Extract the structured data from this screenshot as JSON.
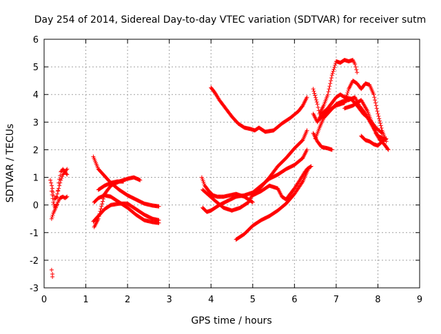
{
  "chart_data": {
    "type": "scatter",
    "title": "Day 254 of 2014, Sidereal Day-to-day VTEC variation (SDTVAR) for receiver sutm",
    "xlabel": "GPS time / hours",
    "ylabel": "SDTVAR / TECUs",
    "xlim": [
      0,
      9
    ],
    "ylim": [
      -3,
      6
    ],
    "x_ticks": [
      "0",
      "1",
      "2",
      "3",
      "4",
      "5",
      "6",
      "7",
      "8",
      "9"
    ],
    "y_ticks": [
      "-3",
      "-2",
      "-1",
      "0",
      "1",
      "2",
      "3",
      "4",
      "5",
      "6"
    ],
    "grid": true,
    "marker": "+",
    "colors": {
      "series": "#ff0000",
      "grid": "#a0a0a0",
      "axis": "#000000"
    },
    "tracks": [
      [
        [
          0.15,
          0.9
        ],
        [
          0.2,
          0.6
        ],
        [
          0.25,
          0.2
        ],
        [
          0.3,
          0.3
        ],
        [
          0.35,
          0.6
        ],
        [
          0.4,
          0.9
        ],
        [
          0.45,
          1.1
        ],
        [
          0.5,
          1.2
        ],
        [
          0.55,
          1.3
        ]
      ],
      [
        [
          0.18,
          -0.5
        ],
        [
          0.22,
          -0.3
        ],
        [
          0.28,
          -0.1
        ],
        [
          0.33,
          0.1
        ],
        [
          0.38,
          0.25
        ],
        [
          0.45,
          0.3
        ],
        [
          0.5,
          0.25
        ],
        [
          0.55,
          0.3
        ]
      ],
      [
        [
          0.18,
          0.5
        ],
        [
          0.22,
          0.1
        ],
        [
          0.26,
          -0.1
        ],
        [
          0.3,
          0.0
        ],
        [
          0.35,
          0.8
        ],
        [
          0.4,
          1.2
        ],
        [
          0.45,
          1.3
        ],
        [
          0.5,
          1.2
        ],
        [
          0.55,
          1.1
        ]
      ],
      [
        [
          0.18,
          -2.35
        ],
        [
          0.2,
          -2.5
        ],
        [
          0.2,
          -2.6
        ]
      ],
      [
        [
          1.18,
          1.75
        ],
        [
          1.3,
          1.3
        ],
        [
          1.45,
          1.05
        ],
        [
          1.6,
          0.8
        ],
        [
          1.8,
          0.55
        ],
        [
          2.0,
          0.35
        ],
        [
          2.2,
          0.2
        ],
        [
          2.4,
          0.05
        ],
        [
          2.6,
          -0.02
        ],
        [
          2.75,
          -0.05
        ]
      ],
      [
        [
          1.18,
          -0.6
        ],
        [
          1.3,
          -0.4
        ],
        [
          1.45,
          -0.15
        ],
        [
          1.6,
          0.0
        ],
        [
          1.8,
          0.05
        ],
        [
          2.0,
          0.05
        ],
        [
          2.2,
          -0.15
        ],
        [
          2.4,
          -0.35
        ],
        [
          2.6,
          -0.5
        ],
        [
          2.75,
          -0.55
        ]
      ],
      [
        [
          1.2,
          0.1
        ],
        [
          1.3,
          0.25
        ],
        [
          1.45,
          0.35
        ],
        [
          1.6,
          0.3
        ],
        [
          1.8,
          0.1
        ],
        [
          2.0,
          -0.1
        ],
        [
          2.2,
          -0.35
        ],
        [
          2.4,
          -0.55
        ],
        [
          2.6,
          -0.62
        ],
        [
          2.75,
          -0.65
        ]
      ],
      [
        [
          1.2,
          -0.8
        ],
        [
          1.3,
          -0.5
        ],
        [
          1.45,
          0.4
        ],
        [
          1.6,
          0.7
        ],
        [
          1.8,
          0.85
        ],
        [
          2.0,
          0.95
        ],
        [
          2.15,
          1.0
        ],
        [
          2.3,
          0.9
        ]
      ],
      [
        [
          1.3,
          0.55
        ],
        [
          1.45,
          0.7
        ],
        [
          1.6,
          0.8
        ],
        [
          1.75,
          0.85
        ],
        [
          1.9,
          0.85
        ]
      ],
      [
        [
          3.78,
          1.0
        ],
        [
          3.85,
          0.7
        ],
        [
          3.95,
          0.5
        ],
        [
          4.05,
          0.35
        ],
        [
          4.15,
          0.3
        ],
        [
          4.3,
          0.3
        ],
        [
          4.45,
          0.35
        ],
        [
          4.6,
          0.4
        ],
        [
          4.8,
          0.3
        ],
        [
          5.0,
          0.1
        ]
      ],
      [
        [
          3.8,
          0.55
        ],
        [
          3.95,
          0.35
        ],
        [
          4.1,
          0.15
        ],
        [
          4.3,
          -0.1
        ],
        [
          4.5,
          -0.2
        ],
        [
          4.7,
          -0.1
        ],
        [
          4.9,
          0.1
        ],
        [
          5.0,
          0.4
        ],
        [
          5.2,
          0.65
        ],
        [
          5.4,
          1.0
        ],
        [
          5.6,
          1.4
        ],
        [
          5.8,
          1.7
        ],
        [
          6.0,
          2.05
        ],
        [
          6.2,
          2.35
        ],
        [
          6.3,
          2.7
        ]
      ],
      [
        [
          3.8,
          -0.1
        ],
        [
          3.9,
          -0.25
        ],
        [
          4.0,
          -0.2
        ],
        [
          4.2,
          0.0
        ],
        [
          4.4,
          0.15
        ],
        [
          4.6,
          0.3
        ],
        [
          4.8,
          0.35
        ],
        [
          5.0,
          0.45
        ],
        [
          5.2,
          0.7
        ],
        [
          5.4,
          0.95
        ],
        [
          5.6,
          1.1
        ],
        [
          5.8,
          1.3
        ],
        [
          6.0,
          1.45
        ],
        [
          6.2,
          1.7
        ],
        [
          6.3,
          2.0
        ]
      ],
      [
        [
          4.0,
          4.25
        ],
        [
          4.1,
          4.05
        ],
        [
          4.2,
          3.8
        ],
        [
          4.35,
          3.5
        ],
        [
          4.5,
          3.2
        ],
        [
          4.65,
          2.95
        ],
        [
          4.8,
          2.8
        ],
        [
          4.95,
          2.75
        ],
        [
          5.05,
          2.7
        ],
        [
          5.15,
          2.8
        ],
        [
          5.3,
          2.65
        ],
        [
          5.5,
          2.7
        ],
        [
          5.7,
          2.95
        ],
        [
          5.9,
          3.15
        ],
        [
          6.1,
          3.4
        ],
        [
          6.2,
          3.6
        ],
        [
          6.3,
          3.9
        ]
      ],
      [
        [
          4.6,
          -1.25
        ],
        [
          4.8,
          -1.05
        ],
        [
          5.0,
          -0.75
        ],
        [
          5.2,
          -0.55
        ],
        [
          5.4,
          -0.4
        ],
        [
          5.6,
          -0.2
        ],
        [
          5.8,
          0.05
        ],
        [
          6.0,
          0.4
        ],
        [
          6.2,
          0.85
        ],
        [
          6.3,
          1.2
        ],
        [
          6.35,
          1.35
        ]
      ],
      [
        [
          5.0,
          0.35
        ],
        [
          5.2,
          0.5
        ],
        [
          5.4,
          0.7
        ],
        [
          5.6,
          0.6
        ],
        [
          5.7,
          0.3
        ],
        [
          5.8,
          0.2
        ],
        [
          5.9,
          0.4
        ],
        [
          6.0,
          0.6
        ],
        [
          6.15,
          0.95
        ],
        [
          6.25,
          1.2
        ],
        [
          6.3,
          1.3
        ],
        [
          6.4,
          1.4
        ]
      ],
      [
        [
          6.45,
          4.2
        ],
        [
          6.55,
          3.65
        ],
        [
          6.6,
          3.3
        ],
        [
          6.7,
          3.6
        ],
        [
          6.8,
          4.0
        ],
        [
          6.9,
          4.7
        ],
        [
          7.0,
          5.2
        ],
        [
          7.1,
          5.15
        ],
        [
          7.2,
          5.25
        ],
        [
          7.3,
          5.2
        ],
        [
          7.4,
          5.25
        ],
        [
          7.45,
          5.1
        ],
        [
          7.5,
          4.8
        ]
      ],
      [
        [
          6.45,
          2.6
        ],
        [
          6.55,
          2.3
        ],
        [
          6.65,
          2.1
        ],
        [
          6.8,
          2.05
        ],
        [
          6.9,
          2.0
        ]
      ],
      [
        [
          6.45,
          3.3
        ],
        [
          6.55,
          3.0
        ],
        [
          6.65,
          3.3
        ],
        [
          6.8,
          3.5
        ],
        [
          6.9,
          3.7
        ],
        [
          7.0,
          3.9
        ],
        [
          7.1,
          4.0
        ],
        [
          7.2,
          3.9
        ],
        [
          7.35,
          3.85
        ],
        [
          7.5,
          3.6
        ],
        [
          7.65,
          3.3
        ],
        [
          7.8,
          3.1
        ],
        [
          7.95,
          2.8
        ],
        [
          8.1,
          2.6
        ]
      ],
      [
        [
          6.5,
          2.4
        ],
        [
          6.6,
          2.8
        ],
        [
          6.7,
          3.15
        ],
        [
          6.85,
          3.4
        ],
        [
          7.0,
          3.65
        ],
        [
          7.15,
          3.75
        ],
        [
          7.3,
          3.8
        ],
        [
          7.45,
          3.9
        ],
        [
          7.55,
          3.6
        ],
        [
          7.7,
          3.3
        ],
        [
          7.85,
          2.9
        ],
        [
          8.0,
          2.5
        ],
        [
          8.15,
          2.4
        ]
      ],
      [
        [
          6.6,
          3.1
        ],
        [
          6.8,
          3.4
        ],
        [
          7.0,
          3.6
        ],
        [
          7.2,
          3.7
        ],
        [
          7.3,
          4.2
        ],
        [
          7.4,
          4.5
        ],
        [
          7.5,
          4.4
        ],
        [
          7.6,
          4.2
        ],
        [
          7.7,
          4.4
        ],
        [
          7.8,
          4.35
        ],
        [
          7.9,
          4.0
        ],
        [
          8.0,
          3.3
        ],
        [
          8.1,
          2.7
        ],
        [
          8.2,
          2.3
        ]
      ],
      [
        [
          7.2,
          3.5
        ],
        [
          7.4,
          3.6
        ],
        [
          7.6,
          3.8
        ],
        [
          7.75,
          3.4
        ],
        [
          7.85,
          3.0
        ],
        [
          7.95,
          2.6
        ],
        [
          8.05,
          2.35
        ],
        [
          8.15,
          2.2
        ],
        [
          8.25,
          2.0
        ]
      ],
      [
        [
          7.6,
          2.5
        ],
        [
          7.7,
          2.35
        ],
        [
          7.8,
          2.3
        ],
        [
          7.9,
          2.2
        ],
        [
          8.0,
          2.15
        ],
        [
          8.1,
          2.3
        ],
        [
          8.2,
          2.4
        ]
      ]
    ]
  }
}
